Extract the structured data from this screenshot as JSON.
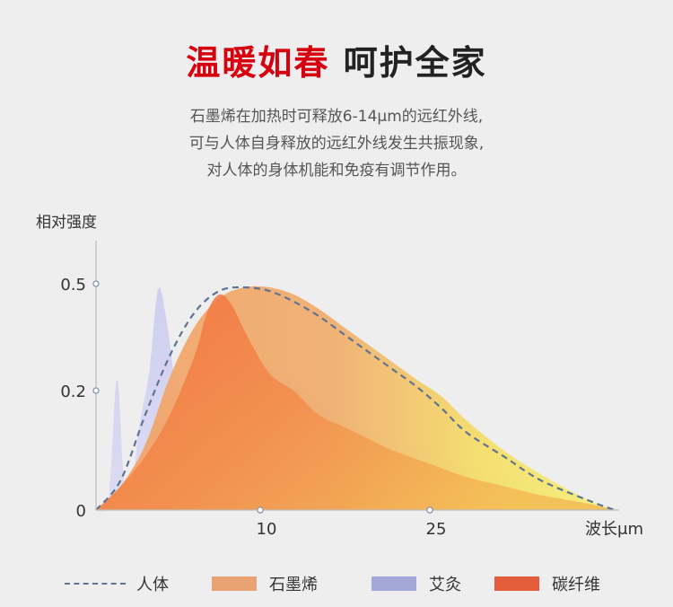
{
  "header": {
    "title_highlight": "温暖如春",
    "title_rest": "呵护全家",
    "desc_lines": [
      "石墨烯在加热时可释放6-14μm的远红外线,",
      "可与人体自身释放的远红外线发生共振现象,",
      "对人体的身体机能和免疫有调节作用。"
    ]
  },
  "chart_data": {
    "type": "area",
    "ylabel": "相对强度",
    "xlabel": "波长μm",
    "y_ticks": [
      "0",
      "0.2",
      "0.5"
    ],
    "x_ticks": [
      "10",
      "25"
    ],
    "grid": false,
    "legend_position": "bottom",
    "series": [
      {
        "name": "人体",
        "style": "dashed-line",
        "color": "#5f7394",
        "x": [
          0,
          2,
          4,
          6,
          8,
          10,
          12,
          14,
          16,
          18,
          20,
          22,
          24,
          26,
          28,
          30,
          33,
          36,
          40,
          42
        ],
        "y": [
          0,
          0.05,
          0.16,
          0.3,
          0.42,
          0.48,
          0.49,
          0.48,
          0.45,
          0.41,
          0.36,
          0.31,
          0.26,
          0.21,
          0.17,
          0.13,
          0.09,
          0.05,
          0.015,
          0
        ]
      },
      {
        "name": "石墨烯",
        "style": "area",
        "color": "#e8a070",
        "x": [
          0,
          2,
          4,
          6,
          8,
          10,
          12,
          14,
          16,
          18,
          20,
          22,
          24,
          26,
          28,
          30,
          33,
          36,
          40,
          42
        ],
        "y": [
          0,
          0.04,
          0.11,
          0.24,
          0.38,
          0.46,
          0.49,
          0.49,
          0.47,
          0.43,
          0.38,
          0.33,
          0.28,
          0.23,
          0.19,
          0.15,
          0.1,
          0.06,
          0.015,
          0
        ]
      },
      {
        "name": "艾灸",
        "style": "area",
        "color": "#a3a8dc",
        "x": [
          0,
          1,
          1.7,
          2.3,
          3,
          3.5,
          4.3,
          5,
          5.6,
          6.4,
          7,
          8,
          9,
          10,
          11,
          12,
          14,
          16,
          18,
          20,
          24,
          28,
          32,
          36,
          40,
          42
        ],
        "y": [
          0,
          0.02,
          0.23,
          0.04,
          0.06,
          0.14,
          0.25,
          0.48,
          0.42,
          0.22,
          0.14,
          0.08,
          0.07,
          0.16,
          0.27,
          0.31,
          0.27,
          0.22,
          0.18,
          0.15,
          0.12,
          0.09,
          0.06,
          0.03,
          0.01,
          0
        ]
      },
      {
        "name": "碳纤维",
        "style": "area",
        "color": "#ea6040",
        "x": [
          0,
          2,
          4,
          6,
          8,
          9,
          10,
          11,
          12,
          14,
          16,
          18,
          20,
          22,
          24,
          26,
          28,
          30,
          33,
          36,
          40,
          42
        ],
        "y": [
          0,
          0.04,
          0.09,
          0.16,
          0.3,
          0.42,
          0.47,
          0.44,
          0.37,
          0.25,
          0.2,
          0.16,
          0.14,
          0.12,
          0.1,
          0.085,
          0.07,
          0.055,
          0.04,
          0.025,
          0.01,
          0
        ]
      }
    ]
  }
}
